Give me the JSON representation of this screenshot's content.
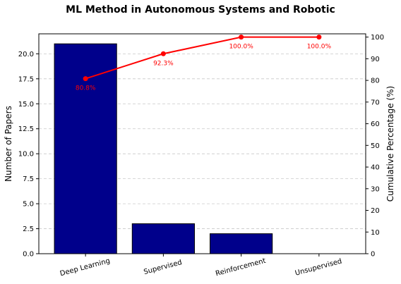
{
  "chart_data": {
    "type": "bar",
    "title": "ML Method in Autonomous Systems and Robotic",
    "categories": [
      "Deep Learning",
      "Supervised",
      "Reinforcement",
      "Unsupervised"
    ],
    "series": [
      {
        "values": [
          21,
          3,
          2,
          0
        ],
        "axis": "left",
        "kind": "bar"
      },
      {
        "values": [
          80.8,
          92.3,
          100.0,
          100.0
        ],
        "axis": "right",
        "kind": "line"
      }
    ],
    "point_labels": [
      "80.8%",
      "92.3%",
      "100.0%",
      "100.0%"
    ],
    "ylabel": "Number of Papers",
    "y2label": "Cumulative Percentage (%)",
    "ylim": [
      0,
      22
    ],
    "y2lim": [
      0,
      101.5
    ],
    "yticks": [
      0,
      2.5,
      5,
      7.5,
      10,
      12.5,
      15,
      17.5,
      20
    ],
    "yticklabels": [
      "0.0",
      "2.5",
      "5.0",
      "7.5",
      "10.0",
      "12.5",
      "15.0",
      "17.5",
      "20.0"
    ],
    "y2ticks": [
      0,
      10,
      20,
      30,
      40,
      50,
      60,
      70,
      80,
      90,
      100
    ],
    "y2ticklabels": [
      "0",
      "10",
      "20",
      "30",
      "40",
      "50",
      "60",
      "70",
      "80",
      "90",
      "100"
    ],
    "grid": "horizontal-dashed",
    "colors": {
      "bar": "#00008b",
      "bar_edge": "#000000",
      "line": "#ff0000",
      "grid": "#c8c8c8"
    }
  }
}
